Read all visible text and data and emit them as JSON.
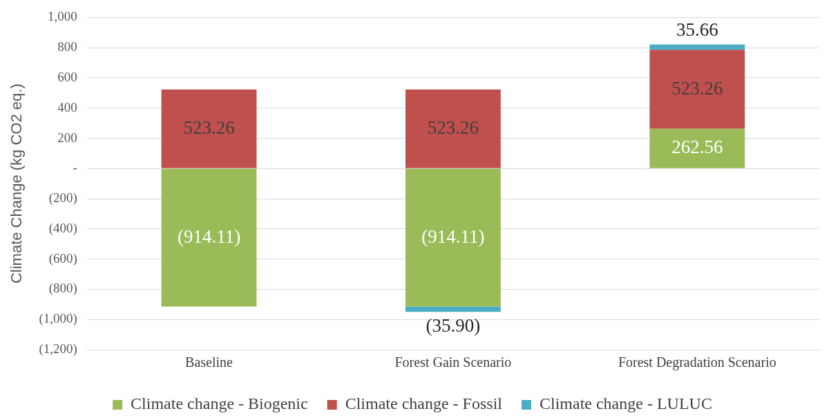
{
  "chart_data": {
    "type": "bar",
    "stacked": true,
    "ylabel": "Climate Change (kg CO2 eq.)",
    "categories": [
      "Baseline",
      "Forest Gain Scenario",
      "Forest Degradation Scenario"
    ],
    "series": [
      {
        "name": "Climate change - Biogenic",
        "color": "#9bbb59",
        "values": [
          -914.11,
          -914.11,
          262.56
        ],
        "value_labels": [
          "(914.11)",
          "(914.11)",
          "262.56"
        ]
      },
      {
        "name": "Climate change - Fossil",
        "color": "#c0504d",
        "values": [
          523.26,
          523.26,
          523.26
        ],
        "value_labels": [
          "523.26",
          "523.26",
          "523.26"
        ]
      },
      {
        "name": "Climate change - LULUC",
        "color": "#4bacc6",
        "values": [
          null,
          -35.9,
          35.66
        ],
        "value_labels": [
          null,
          "(35.90)",
          "35.66"
        ]
      }
    ],
    "ylim": [
      -1200,
      1000
    ],
    "yticks": [
      {
        "value": -1200,
        "label": "(1,200)"
      },
      {
        "value": -1000,
        "label": "(1,000)"
      },
      {
        "value": -800,
        "label": "(800)"
      },
      {
        "value": -600,
        "label": "(600)"
      },
      {
        "value": -400,
        "label": "(400)"
      },
      {
        "value": -200,
        "label": "(200)"
      },
      {
        "value": 0,
        "label": "-"
      },
      {
        "value": 200,
        "label": "200"
      },
      {
        "value": 400,
        "label": "400"
      },
      {
        "value": 600,
        "label": "600"
      },
      {
        "value": 800,
        "label": "800"
      },
      {
        "value": 1000,
        "label": "1,000"
      }
    ],
    "grid": "y",
    "legend": "bottom"
  }
}
